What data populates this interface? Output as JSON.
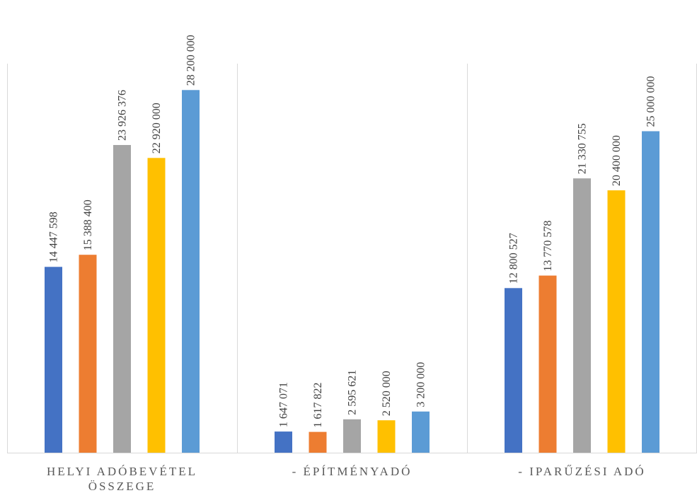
{
  "chart_data": {
    "type": "bar",
    "title": "",
    "xlabel": "",
    "ylabel": "",
    "categories": [
      [
        "HELYI ADÓBEVÉTEL",
        "ÖSSZEGE"
      ],
      [
        "- ÉPÍTMÉNYADÓ"
      ],
      [
        "- IPARŰZÉSI ADÓ"
      ]
    ],
    "series": [
      {
        "values": [
          14447598,
          1647071,
          12800527
        ],
        "labels": [
          "14 447 598",
          "1 647 071",
          "12 800 527"
        ],
        "color": "#4472c4"
      },
      {
        "values": [
          15388400,
          1617822,
          13770578
        ],
        "labels": [
          "15 388 400",
          "1 617 822",
          "13 770 578"
        ],
        "color": "#ed7d31"
      },
      {
        "values": [
          23926376,
          2595621,
          21330755
        ],
        "labels": [
          "23 926 376",
          "2 595 621",
          "21 330 755"
        ],
        "color": "#a5a5a5"
      },
      {
        "values": [
          22920000,
          2520000,
          20400000
        ],
        "labels": [
          "22 920 000",
          "2 520 000",
          "20 400 000"
        ],
        "color": "#ffc000"
      },
      {
        "values": [
          28200000,
          3200000,
          25000000
        ],
        "labels": [
          "28 200 000",
          "3 200 000",
          "25 000 000"
        ],
        "color": "#5b9bd5"
      }
    ],
    "ylim": [
      0,
      33000000
    ],
    "grid": false,
    "legend": "none"
  }
}
